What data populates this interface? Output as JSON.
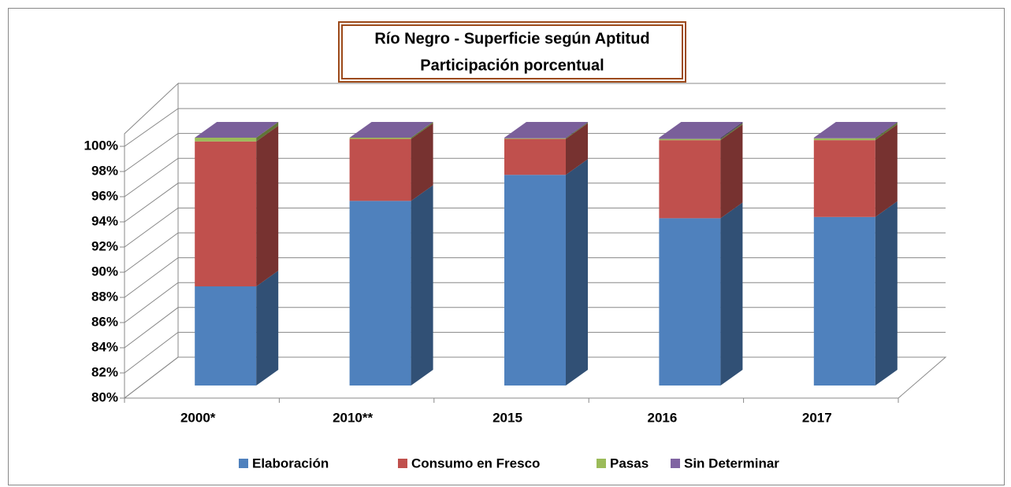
{
  "chart_data": {
    "type": "bar3d_stacked",
    "title": "Río Negro - Superficie según Aptitud",
    "subtitle": "Participación porcentual",
    "categories": [
      "2000*",
      "2010**",
      "2015",
      "2016",
      "2017"
    ],
    "series": [
      {
        "name": "Elaboración",
        "color": "#4f81bd",
        "values": [
          88.0,
          94.9,
          97.0,
          93.5,
          93.6
        ]
      },
      {
        "name": "Consumo en Fresco",
        "color": "#c0504d",
        "values": [
          11.7,
          5.0,
          2.9,
          6.3,
          6.2
        ]
      },
      {
        "name": "Pasas",
        "color": "#9bbb59",
        "values": [
          0.3,
          0.1,
          0.05,
          0.1,
          0.15
        ]
      },
      {
        "name": "Sin Determinar",
        "color": "#8064a2",
        "values": [
          0.05,
          0.05,
          0.05,
          0.1,
          0.05
        ]
      }
    ],
    "ylim": [
      80,
      100
    ],
    "yticks": [
      {
        "value": 80,
        "label": "80%"
      },
      {
        "value": 82,
        "label": "82%"
      },
      {
        "value": 84,
        "label": "84%"
      },
      {
        "value": 86,
        "label": "86%"
      },
      {
        "value": 88,
        "label": "88%"
      },
      {
        "value": 90,
        "label": "90%"
      },
      {
        "value": 92,
        "label": "92%"
      },
      {
        "value": 94,
        "label": "94%"
      },
      {
        "value": 96,
        "label": "96%"
      },
      {
        "value": 98,
        "label": "98%"
      },
      {
        "value": 100,
        "label": "100%"
      }
    ],
    "grid": true,
    "legend": "bottom"
  }
}
